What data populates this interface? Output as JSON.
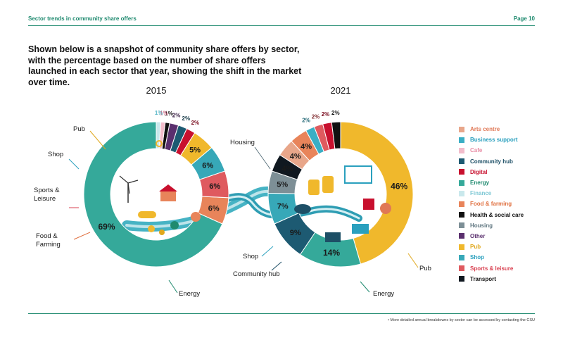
{
  "header": {
    "section": "Sector trends in community share offers",
    "page": "Page 10"
  },
  "intro": "Shown below is a snapshot of community share offers by sector, with the percentage based on the number of share offers launched in each sector that year, showing the shift in the market over time.",
  "footnote": "• More detailed annual breakdowns by sector can be accessed by contacting the CSU",
  "colors": {
    "Arts centre": "#e8a68a",
    "Business support": "#3aaec4",
    "Cafe": "#f2bccb",
    "Community hub": "#1d5a72",
    "Digital": "#c8102e",
    "Energy": "#35a99a",
    "Finance": "#c9e8ec",
    "Food & farming": "#e8845a",
    "Health & social care": "#111111",
    "Housing": "#7d8f96",
    "Other": "#5a2f6e",
    "Pub": "#f0b82c",
    "Shop": "#37a8b8",
    "Sports & leisure": "#df5a5f",
    "Transport": "#101820"
  },
  "legend_colors": {
    "Arts centre": "#e07856",
    "Business support": "#2aa0be",
    "Cafe": "#e98da6",
    "Community hub": "#1d4f66",
    "Digital": "#c8102e",
    "Energy": "#1f8a6f",
    "Finance": "#7cc7d4",
    "Food & farming": "#e07040",
    "Health & social care": "#111111",
    "Housing": "#5f7680",
    "Other": "#5a2f6e",
    "Pub": "#e0a81c",
    "Shop": "#2aa0be",
    "Sports & leisure": "#d94050",
    "Transport": "#111111"
  },
  "chart_data": [
    {
      "type": "pie",
      "title": "2015",
      "slices": [
        {
          "sector": "Energy",
          "value": 69,
          "label": "69%"
        },
        {
          "sector": "Food & farming",
          "value": 6,
          "label": "6%"
        },
        {
          "sector": "Sports & leisure",
          "value": 6,
          "label": "6%"
        },
        {
          "sector": "Shop",
          "value": 6,
          "label": "6%"
        },
        {
          "sector": "Pub",
          "value": 5,
          "label": "5%"
        },
        {
          "sector": "Digital",
          "value": 2,
          "label": "2%"
        },
        {
          "sector": "Community hub",
          "value": 2,
          "label": "2%"
        },
        {
          "sector": "Other",
          "value": 2,
          "label": "2%"
        },
        {
          "sector": "Health & social care",
          "value": 1,
          "label": "1%"
        },
        {
          "sector": "Cafe",
          "value": 1,
          "label": "1%"
        },
        {
          "sector": "Finance",
          "value": 1,
          "label": "1%"
        }
      ],
      "callouts": [
        {
          "sector": "Pub",
          "text": "Pub"
        },
        {
          "sector": "Shop",
          "text": "Shop"
        },
        {
          "sector": "Sports & leisure",
          "text": "Sports & Leisure"
        },
        {
          "sector": "Food & farming",
          "text": "Food & Farming"
        },
        {
          "sector": "Energy",
          "text": "Energy"
        }
      ]
    },
    {
      "type": "pie",
      "title": "2021",
      "slices": [
        {
          "sector": "Pub",
          "value": 46,
          "label": "46%"
        },
        {
          "sector": "Energy",
          "value": 14,
          "label": "14%"
        },
        {
          "sector": "Community hub",
          "value": 9,
          "label": "9%"
        },
        {
          "sector": "Shop",
          "value": 7,
          "label": "7%"
        },
        {
          "sector": "Housing",
          "value": 5,
          "label": "5%"
        },
        {
          "sector": "Transport",
          "value": 4,
          "label": "4%"
        },
        {
          "sector": "Arts centre",
          "value": 4,
          "label": "4%"
        },
        {
          "sector": "Food & farming",
          "value": 4,
          "label": "4%"
        },
        {
          "sector": "Business support",
          "value": 2,
          "label": "2%"
        },
        {
          "sector": "Sports & leisure",
          "value": 2,
          "label": "2%"
        },
        {
          "sector": "Digital",
          "value": 2,
          "label": "2%"
        },
        {
          "sector": "Health & social care",
          "value": 2,
          "label": "2%"
        }
      ],
      "callouts": [
        {
          "sector": "Housing",
          "text": "Housing"
        },
        {
          "sector": "Shop",
          "text": "Shop"
        },
        {
          "sector": "Community hub",
          "text": "Community hub"
        },
        {
          "sector": "Energy",
          "text": "Energy"
        },
        {
          "sector": "Pub",
          "text": "Pub"
        }
      ]
    }
  ],
  "legend": [
    "Arts centre",
    "Business support",
    "Cafe",
    "Community hub",
    "Digital",
    "Energy",
    "Finance",
    "Food & farming",
    "Health & social care",
    "Housing",
    "Other",
    "Pub",
    "Shop",
    "Sports & leisure",
    "Transport"
  ]
}
